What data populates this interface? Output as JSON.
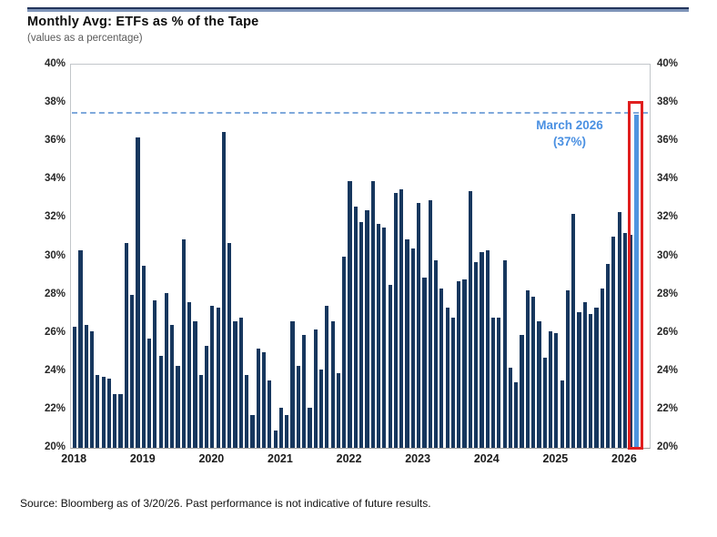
{
  "header": {
    "title": "Monthly Avg: ETFs as % of the Tape",
    "subtitle": "(values as a percentage)"
  },
  "footer": {
    "source": "Source: Bloomberg as of 3/20/26. Past performance is not indicative of future results."
  },
  "chart_data": {
    "type": "bar",
    "title": "Monthly Avg: ETFs as % of the Tape",
    "subtitle": "(values as a percentage)",
    "x_unit": "month",
    "x_start_month": "2018-01",
    "x_end_month": "2026-03",
    "year_tick_labels": [
      "2018",
      "2019",
      "2020",
      "2021",
      "2022",
      "2023",
      "2024",
      "2025",
      "2026"
    ],
    "ylim": [
      20,
      40
    ],
    "ytick_step": 2,
    "ytick_labels": [
      "40%",
      "38%",
      "36%",
      "34%",
      "32%",
      "30%",
      "28%",
      "26%",
      "24%",
      "22%",
      "20%"
    ],
    "grid": false,
    "legend": "none",
    "bar_color": "#17375E",
    "values": [
      26.3,
      30.3,
      26.4,
      26.1,
      23.8,
      23.7,
      23.6,
      22.8,
      22.8,
      30.7,
      28.0,
      36.2,
      29.5,
      25.7,
      27.7,
      24.8,
      28.1,
      26.4,
      24.3,
      30.9,
      27.6,
      26.6,
      23.8,
      25.3,
      27.4,
      27.3,
      36.5,
      30.7,
      26.6,
      26.8,
      23.8,
      21.7,
      25.2,
      25.0,
      23.5,
      20.9,
      22.1,
      21.7,
      26.6,
      24.3,
      25.9,
      22.1,
      26.2,
      24.1,
      27.4,
      26.6,
      23.9,
      30.0,
      33.9,
      32.6,
      31.8,
      32.4,
      33.9,
      31.7,
      31.5,
      28.5,
      33.3,
      33.5,
      30.9,
      30.4,
      32.8,
      28.9,
      32.9,
      29.8,
      28.3,
      27.3,
      26.8,
      28.7,
      28.8,
      33.4,
      29.7,
      30.2,
      30.3,
      26.8,
      26.8,
      29.8,
      24.2,
      23.4,
      25.9,
      28.2,
      27.9,
      26.6,
      24.7,
      26.1,
      26.0,
      23.5,
      28.2,
      32.2,
      27.1,
      27.6,
      27.0,
      27.3,
      28.3,
      29.6,
      31.0,
      32.3,
      31.2,
      31.1,
      37.4
    ],
    "highlight": {
      "index": 98,
      "month": "March 2026",
      "value": 37.4,
      "labeled_value": "37%",
      "bar_color": "#4F95E0",
      "box_color": "#E01E1E",
      "annotation_line1": "March 2026",
      "annotation_line2": "(37%)",
      "annotation_color": "#4A90E2"
    },
    "reference_line": {
      "value": 37.5,
      "style": "dashed",
      "color": "#7FA9DC"
    }
  }
}
